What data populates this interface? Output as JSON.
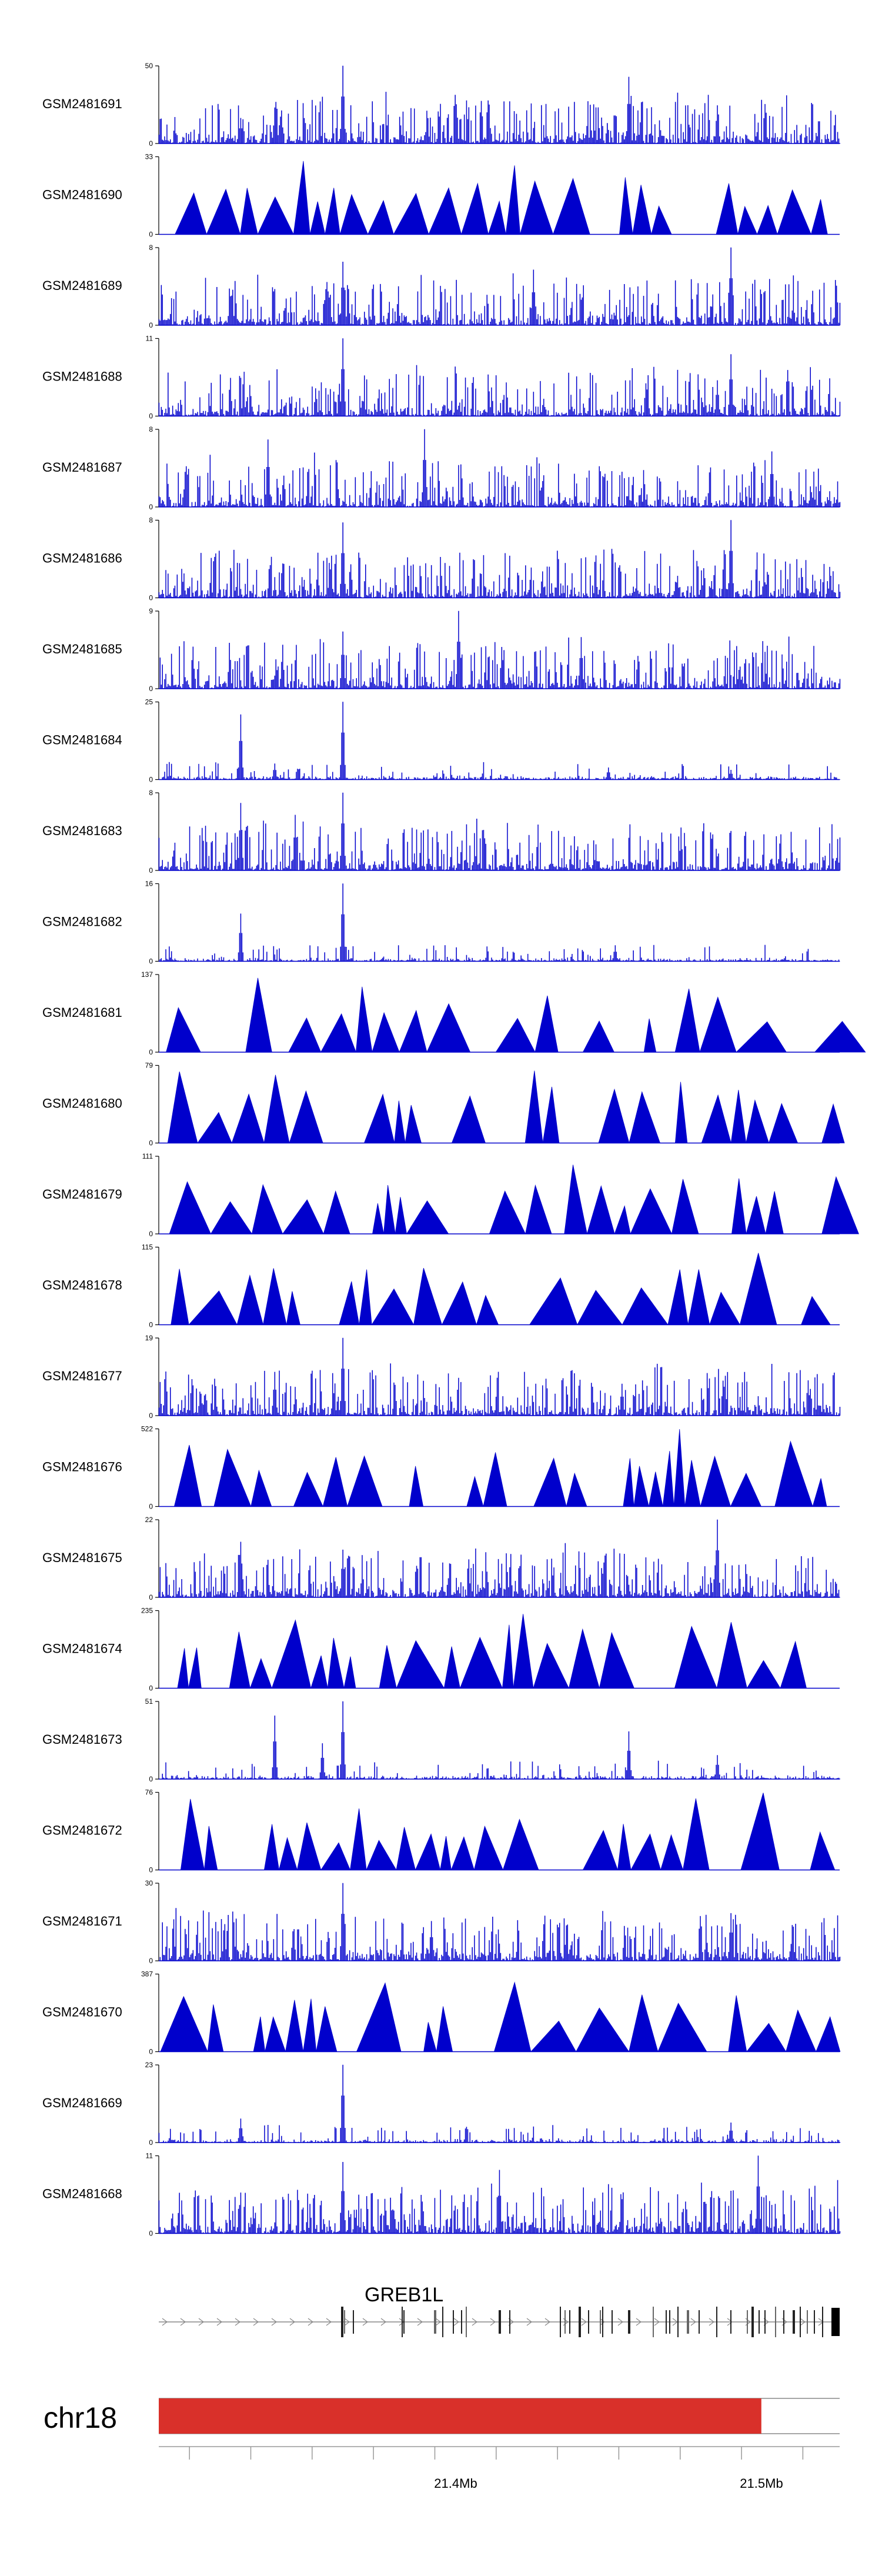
{
  "colors": {
    "signal": "#0000CC",
    "axis": "#000000",
    "ideogram": "#D9302A",
    "ideogram_outline": "#888888"
  },
  "chart_data": {
    "type": "area",
    "title": "",
    "xlabel": "",
    "ylabel": "",
    "region": {
      "chrom": "chr18",
      "start": 21300000,
      "end": 21522000
    },
    "series": [
      {
        "name": "GSM2481691",
        "ymax": "50",
        "style": "dense",
        "peaks": [
          {
            "x": 0.27,
            "h": 1.0
          },
          {
            "x": 0.69,
            "h": 0.84
          },
          {
            "x": 0.82,
            "h": 0.48
          },
          {
            "x": 0.17,
            "h": 0.38
          },
          {
            "x": 0.12,
            "h": 0.32
          }
        ]
      },
      {
        "name": "GSM2481690",
        "ymax": "33",
        "style": "triangles",
        "peaks": []
      },
      {
        "name": "GSM2481689",
        "ymax": "8",
        "style": "dense",
        "peaks": [
          {
            "x": 0.84,
            "h": 1.0
          },
          {
            "x": 0.27,
            "h": 0.8
          },
          {
            "x": 0.55,
            "h": 0.7
          }
        ]
      },
      {
        "name": "GSM2481688",
        "ymax": "11",
        "style": "dense",
        "peaks": [
          {
            "x": 0.27,
            "h": 1.0
          },
          {
            "x": 0.84,
            "h": 0.78
          },
          {
            "x": 0.82,
            "h": 0.45
          }
        ]
      },
      {
        "name": "GSM2481687",
        "ymax": "8",
        "style": "dense",
        "peaks": [
          {
            "x": 0.39,
            "h": 1.0
          },
          {
            "x": 0.16,
            "h": 0.85
          },
          {
            "x": 0.9,
            "h": 0.7
          }
        ]
      },
      {
        "name": "GSM2481686",
        "ymax": "8",
        "style": "dense",
        "peaks": [
          {
            "x": 0.84,
            "h": 1.0
          },
          {
            "x": 0.27,
            "h": 0.95
          },
          {
            "x": 0.83,
            "h": 0.6
          }
        ]
      },
      {
        "name": "GSM2481685",
        "ymax": "9",
        "style": "dense",
        "peaks": [
          {
            "x": 0.44,
            "h": 1.0
          },
          {
            "x": 0.27,
            "h": 0.72
          },
          {
            "x": 0.62,
            "h": 0.65
          }
        ]
      },
      {
        "name": "GSM2481684",
        "ymax": "25",
        "style": "sparse",
        "peaks": [
          {
            "x": 0.27,
            "h": 1.0
          },
          {
            "x": 0.12,
            "h": 0.82
          },
          {
            "x": 0.17,
            "h": 0.2
          },
          {
            "x": 0.66,
            "h": 0.15
          },
          {
            "x": 0.84,
            "h": 0.12
          }
        ]
      },
      {
        "name": "GSM2481683",
        "ymax": "8",
        "style": "dense",
        "peaks": [
          {
            "x": 0.27,
            "h": 1.0
          },
          {
            "x": 0.12,
            "h": 0.85
          },
          {
            "x": 0.2,
            "h": 0.7
          }
        ]
      },
      {
        "name": "GSM2481682",
        "ymax": "16",
        "style": "sparse",
        "peaks": [
          {
            "x": 0.27,
            "h": 1.0
          },
          {
            "x": 0.12,
            "h": 0.6
          },
          {
            "x": 0.67,
            "h": 0.2
          }
        ]
      },
      {
        "name": "GSM2481681",
        "ymax": "137",
        "style": "triangles",
        "peaks": []
      },
      {
        "name": "GSM2481680",
        "ymax": "79",
        "style": "triangles",
        "peaks": []
      },
      {
        "name": "GSM2481679",
        "ymax": "111",
        "style": "triangles",
        "peaks": []
      },
      {
        "name": "GSM2481678",
        "ymax": "115",
        "style": "triangles",
        "peaks": []
      },
      {
        "name": "GSM2481677",
        "ymax": "19",
        "style": "dense",
        "peaks": [
          {
            "x": 0.27,
            "h": 1.0
          },
          {
            "x": 0.17,
            "h": 0.55
          },
          {
            "x": 0.68,
            "h": 0.4
          }
        ]
      },
      {
        "name": "GSM2481676",
        "ymax": "522",
        "style": "triangles",
        "peaks": []
      },
      {
        "name": "GSM2481675",
        "ymax": "22",
        "style": "dense",
        "peaks": [
          {
            "x": 0.82,
            "h": 1.0
          },
          {
            "x": 0.12,
            "h": 0.7
          },
          {
            "x": 0.27,
            "h": 0.6
          }
        ]
      },
      {
        "name": "GSM2481674",
        "ymax": "235",
        "style": "triangles",
        "peaks": []
      },
      {
        "name": "GSM2481673",
        "ymax": "51",
        "style": "sparse",
        "peaks": [
          {
            "x": 0.27,
            "h": 1.0
          },
          {
            "x": 0.17,
            "h": 0.8
          },
          {
            "x": 0.69,
            "h": 0.6
          },
          {
            "x": 0.24,
            "h": 0.45
          },
          {
            "x": 0.82,
            "h": 0.3
          }
        ]
      },
      {
        "name": "GSM2481672",
        "ymax": "76",
        "style": "triangles",
        "peaks": []
      },
      {
        "name": "GSM2481671",
        "ymax": "30",
        "style": "dense",
        "peaks": [
          {
            "x": 0.27,
            "h": 1.0
          },
          {
            "x": 0.84,
            "h": 0.6
          },
          {
            "x": 0.4,
            "h": 0.5
          }
        ]
      },
      {
        "name": "GSM2481670",
        "ymax": "387",
        "style": "triangles",
        "peaks": []
      },
      {
        "name": "GSM2481669",
        "ymax": "23",
        "style": "sparse",
        "peaks": [
          {
            "x": 0.27,
            "h": 1.0
          },
          {
            "x": 0.12,
            "h": 0.3
          },
          {
            "x": 0.84,
            "h": 0.25
          }
        ]
      },
      {
        "name": "GSM2481668",
        "ymax": "11",
        "style": "dense",
        "peaks": [
          {
            "x": 0.88,
            "h": 1.0
          },
          {
            "x": 0.27,
            "h": 0.9
          },
          {
            "x": 0.5,
            "h": 0.8
          }
        ]
      }
    ],
    "gene": {
      "name": "GREB1L",
      "strand": "+"
    },
    "ideogram": {
      "label": "chr18",
      "filled_fraction": 0.885
    },
    "axis": {
      "tick_labels": [
        "21.4Mb",
        "21.5Mb"
      ]
    }
  }
}
